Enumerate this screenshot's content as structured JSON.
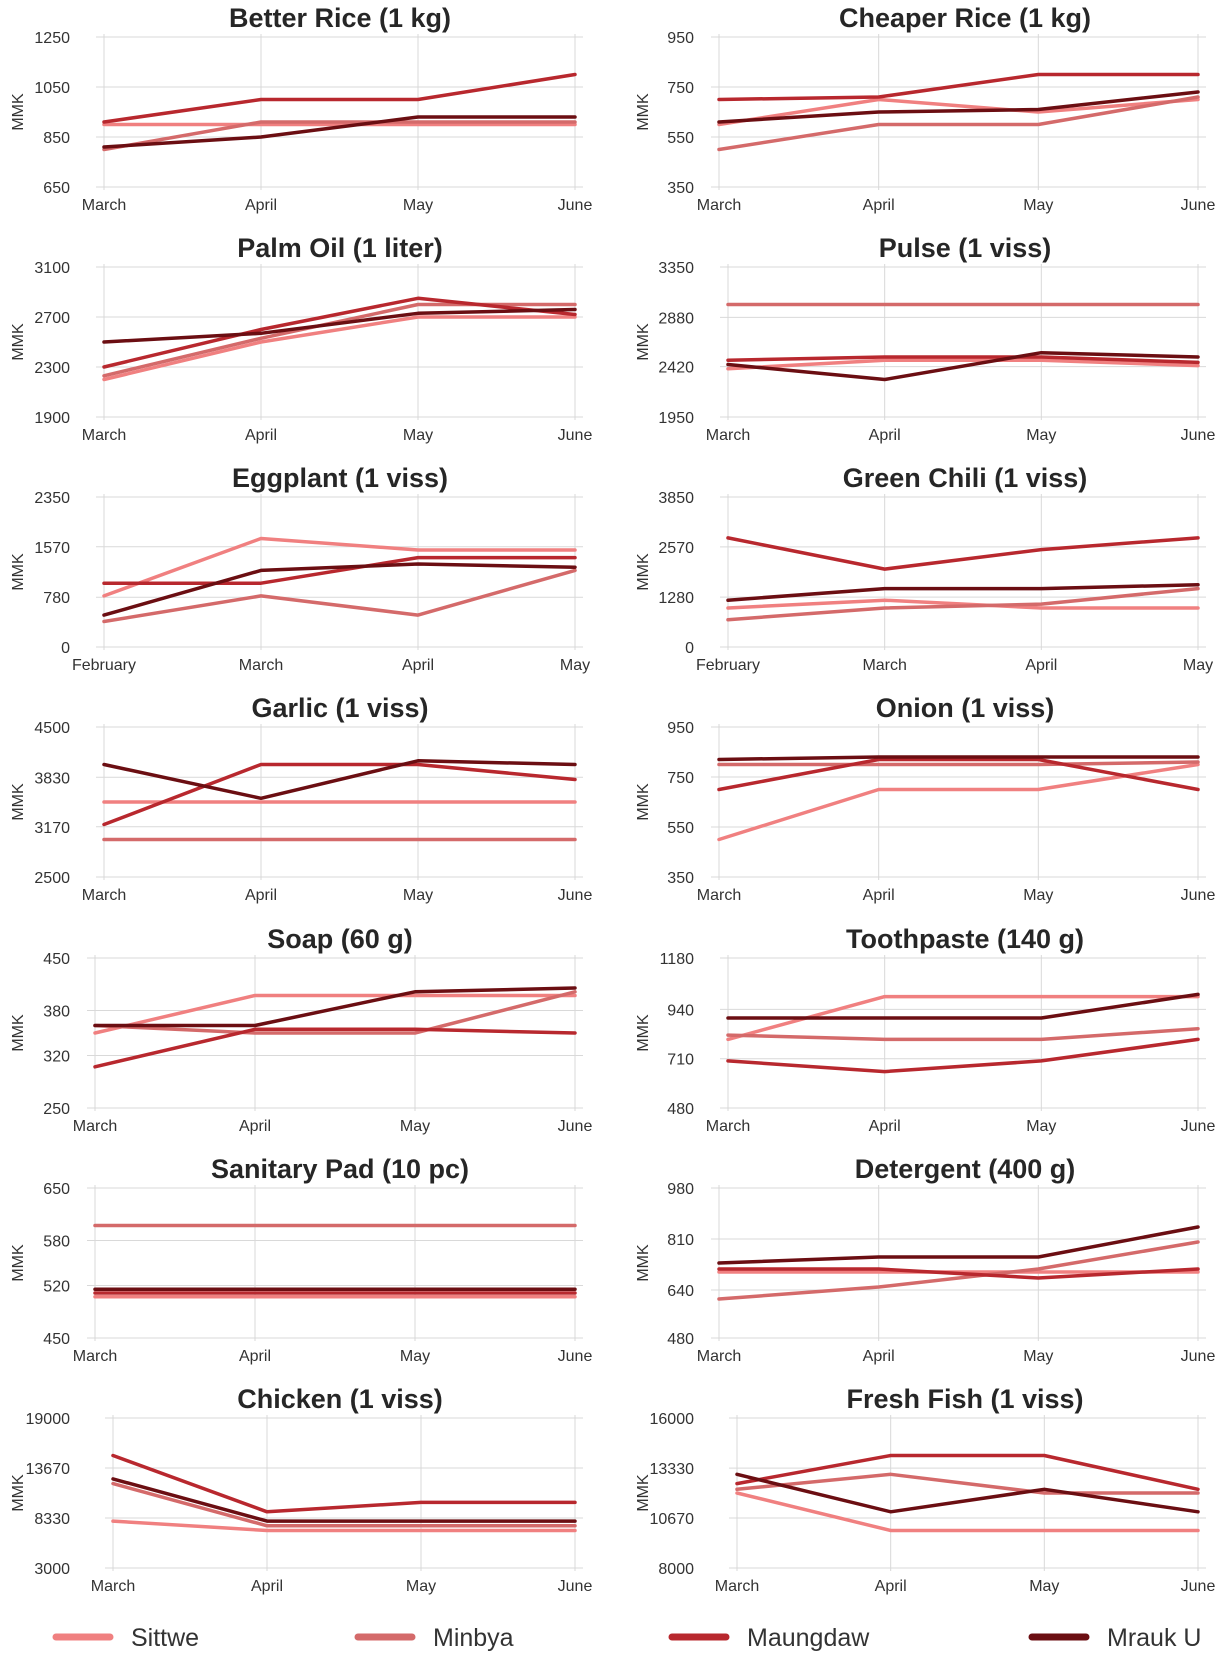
{
  "colors": {
    "Sittwe": "#f08080",
    "Minbya": "#d46a6a",
    "Maungdaw": "#b8282e",
    "Mrauk U": "#6b0e12"
  },
  "legend": [
    "Sittwe",
    "Minbya",
    "Maungdaw",
    "Mrauk U"
  ],
  "chart_data": [
    {
      "type": "line",
      "title": "Better Rice (1 kg)",
      "ylabel": "MMK",
      "categories": [
        "March",
        "April",
        "May",
        "June"
      ],
      "ylim": [
        650,
        1250
      ],
      "yticks": [
        650,
        850,
        1050,
        1250
      ],
      "series": [
        {
          "name": "Sittwe",
          "values": [
            900,
            900,
            900,
            900
          ]
        },
        {
          "name": "Minbya",
          "values": [
            800,
            910,
            910,
            910
          ]
        },
        {
          "name": "Maungdaw",
          "values": [
            910,
            1000,
            1000,
            1100
          ]
        },
        {
          "name": "Mrauk U",
          "values": [
            810,
            850,
            930,
            930
          ]
        }
      ]
    },
    {
      "type": "line",
      "title": "Cheaper Rice (1 kg)",
      "ylabel": "MMK",
      "categories": [
        "March",
        "April",
        "May",
        "June"
      ],
      "ylim": [
        350,
        950
      ],
      "yticks": [
        350,
        550,
        750,
        950
      ],
      "series": [
        {
          "name": "Sittwe",
          "values": [
            600,
            700,
            650,
            700
          ]
        },
        {
          "name": "Minbya",
          "values": [
            500,
            600,
            600,
            710
          ]
        },
        {
          "name": "Maungdaw",
          "values": [
            700,
            710,
            800,
            800
          ]
        },
        {
          "name": "Mrauk U",
          "values": [
            610,
            650,
            660,
            730
          ]
        }
      ]
    },
    {
      "type": "line",
      "title": "Palm Oil (1 liter)",
      "ylabel": "MMK",
      "categories": [
        "March",
        "April",
        "May",
        "June"
      ],
      "ylim": [
        1900,
        3100
      ],
      "yticks": [
        1900,
        2300,
        2700,
        3100
      ],
      "series": [
        {
          "name": "Sittwe",
          "values": [
            2200,
            2500,
            2700,
            2700
          ]
        },
        {
          "name": "Minbya",
          "values": [
            2230,
            2530,
            2800,
            2800
          ]
        },
        {
          "name": "Maungdaw",
          "values": [
            2300,
            2600,
            2850,
            2720
          ]
        },
        {
          "name": "Mrauk U",
          "values": [
            2500,
            2570,
            2730,
            2760
          ]
        }
      ]
    },
    {
      "type": "line",
      "title": "Pulse (1 viss)",
      "ylabel": "MMK",
      "categories": [
        "March",
        "April",
        "May",
        "June"
      ],
      "ylim": [
        1950,
        3350
      ],
      "yticks": [
        1950,
        2420,
        2880,
        3350
      ],
      "series": [
        {
          "name": "Sittwe",
          "values": [
            2400,
            2480,
            2480,
            2430
          ]
        },
        {
          "name": "Minbya",
          "values": [
            3000,
            3000,
            3000,
            3000
          ]
        },
        {
          "name": "Maungdaw",
          "values": [
            2480,
            2510,
            2510,
            2460
          ]
        },
        {
          "name": "Mrauk U",
          "values": [
            2440,
            2300,
            2550,
            2510
          ]
        }
      ]
    },
    {
      "type": "line",
      "title": "Eggplant (1 viss)",
      "ylabel": "MMK",
      "categories": [
        "February",
        "March",
        "April",
        "May"
      ],
      "ylim": [
        0,
        2350
      ],
      "yticks": [
        0,
        780,
        1570,
        2350
      ],
      "series": [
        {
          "name": "Sittwe",
          "values": [
            800,
            1700,
            1520,
            1520
          ]
        },
        {
          "name": "Minbya",
          "values": [
            400,
            800,
            500,
            1200
          ]
        },
        {
          "name": "Maungdaw",
          "values": [
            1000,
            1000,
            1400,
            1400
          ]
        },
        {
          "name": "Mrauk U",
          "values": [
            500,
            1200,
            1300,
            1250
          ]
        }
      ]
    },
    {
      "type": "line",
      "title": "Green Chili (1 viss)",
      "ylabel": "MMK",
      "categories": [
        "February",
        "March",
        "April",
        "May"
      ],
      "ylim": [
        0,
        3850
      ],
      "yticks": [
        0,
        1280,
        2570,
        3850
      ],
      "series": [
        {
          "name": "Sittwe",
          "values": [
            1000,
            1200,
            1000,
            1000
          ]
        },
        {
          "name": "Minbya",
          "values": [
            700,
            1000,
            1100,
            1500
          ]
        },
        {
          "name": "Maungdaw",
          "values": [
            2800,
            2000,
            2500,
            2800
          ]
        },
        {
          "name": "Mrauk U",
          "values": [
            1200,
            1500,
            1500,
            1600
          ]
        }
      ]
    },
    {
      "type": "line",
      "title": "Garlic (1 viss)",
      "ylabel": "MMK",
      "categories": [
        "March",
        "April",
        "May",
        "June"
      ],
      "ylim": [
        2500,
        4500
      ],
      "yticks": [
        2500,
        3170,
        3830,
        4500
      ],
      "series": [
        {
          "name": "Sittwe",
          "values": [
            3500,
            3500,
            3500,
            3500
          ]
        },
        {
          "name": "Minbya",
          "values": [
            3000,
            3000,
            3000,
            3000
          ]
        },
        {
          "name": "Maungdaw",
          "values": [
            3200,
            4000,
            4000,
            3800
          ]
        },
        {
          "name": "Mrauk U",
          "values": [
            4000,
            3550,
            4050,
            4000
          ]
        }
      ]
    },
    {
      "type": "line",
      "title": "Onion (1 viss)",
      "ylabel": "MMK",
      "categories": [
        "March",
        "April",
        "May",
        "June"
      ],
      "ylim": [
        350,
        950
      ],
      "yticks": [
        350,
        550,
        750,
        950
      ],
      "series": [
        {
          "name": "Sittwe",
          "values": [
            500,
            700,
            700,
            800
          ]
        },
        {
          "name": "Minbya",
          "values": [
            800,
            800,
            800,
            810
          ]
        },
        {
          "name": "Maungdaw",
          "values": [
            700,
            820,
            820,
            700
          ]
        },
        {
          "name": "Mrauk U",
          "values": [
            820,
            830,
            830,
            830
          ]
        }
      ]
    },
    {
      "type": "line",
      "title": "Soap (60 g)",
      "ylabel": "MMK",
      "categories": [
        "March",
        "April",
        "May",
        "June"
      ],
      "ylim": [
        250,
        450
      ],
      "yticks": [
        250,
        320,
        380,
        450
      ],
      "series": [
        {
          "name": "Sittwe",
          "values": [
            350,
            400,
            400,
            400
          ]
        },
        {
          "name": "Minbya",
          "values": [
            360,
            350,
            350,
            405
          ]
        },
        {
          "name": "Maungdaw",
          "values": [
            305,
            355,
            355,
            350
          ]
        },
        {
          "name": "Mrauk U",
          "values": [
            360,
            360,
            405,
            410
          ]
        }
      ]
    },
    {
      "type": "line",
      "title": "Toothpaste (140 g)",
      "ylabel": "MMK",
      "categories": [
        "March",
        "April",
        "May",
        "June"
      ],
      "ylim": [
        480,
        1180
      ],
      "yticks": [
        480,
        710,
        940,
        1180
      ],
      "series": [
        {
          "name": "Sittwe",
          "values": [
            800,
            1000,
            1000,
            1000
          ]
        },
        {
          "name": "Minbya",
          "values": [
            820,
            800,
            800,
            850
          ]
        },
        {
          "name": "Maungdaw",
          "values": [
            700,
            650,
            700,
            800
          ]
        },
        {
          "name": "Mrauk U",
          "values": [
            900,
            900,
            900,
            1010
          ]
        }
      ]
    },
    {
      "type": "line",
      "title": "Sanitary Pad (10 pc)",
      "ylabel": "MMK",
      "categories": [
        "March",
        "April",
        "May",
        "June"
      ],
      "ylim": [
        450,
        650
      ],
      "yticks": [
        450,
        520,
        580,
        650
      ],
      "series": [
        {
          "name": "Sittwe",
          "values": [
            505,
            505,
            505,
            505
          ]
        },
        {
          "name": "Minbya",
          "values": [
            600,
            600,
            600,
            600
          ]
        },
        {
          "name": "Maungdaw",
          "values": [
            510,
            510,
            510,
            510
          ]
        },
        {
          "name": "Mrauk U",
          "values": [
            515,
            515,
            515,
            515
          ]
        }
      ]
    },
    {
      "type": "line",
      "title": "Detergent (400 g)",
      "ylabel": "MMK",
      "categories": [
        "March",
        "April",
        "May",
        "June"
      ],
      "ylim": [
        480,
        980
      ],
      "yticks": [
        480,
        640,
        810,
        980
      ],
      "series": [
        {
          "name": "Sittwe",
          "values": [
            700,
            700,
            700,
            700
          ]
        },
        {
          "name": "Minbya",
          "values": [
            610,
            650,
            710,
            800
          ]
        },
        {
          "name": "Maungdaw",
          "values": [
            710,
            710,
            680,
            710
          ]
        },
        {
          "name": "Mrauk U",
          "values": [
            730,
            750,
            750,
            850
          ]
        }
      ]
    },
    {
      "type": "line",
      "title": "Chicken (1 viss)",
      "ylabel": "MMK",
      "categories": [
        "March",
        "April",
        "May",
        "June"
      ],
      "ylim": [
        3000,
        19000
      ],
      "yticks": [
        3000,
        8330,
        13670,
        19000
      ],
      "series": [
        {
          "name": "Sittwe",
          "values": [
            8000,
            7000,
            7000,
            7000
          ]
        },
        {
          "name": "Minbya",
          "values": [
            12000,
            7500,
            7500,
            7500
          ]
        },
        {
          "name": "Maungdaw",
          "values": [
            15000,
            9000,
            10000,
            10000
          ]
        },
        {
          "name": "Mrauk U",
          "values": [
            12500,
            8000,
            8000,
            8000
          ]
        }
      ]
    },
    {
      "type": "line",
      "title": "Fresh Fish (1 viss)",
      "ylabel": "MMK",
      "categories": [
        "March",
        "April",
        "May",
        "June"
      ],
      "ylim": [
        8000,
        16000
      ],
      "yticks": [
        8000,
        10670,
        13330,
        16000
      ],
      "series": [
        {
          "name": "Sittwe",
          "values": [
            12000,
            10000,
            10000,
            10000
          ]
        },
        {
          "name": "Minbya",
          "values": [
            12200,
            13000,
            12000,
            12000
          ]
        },
        {
          "name": "Maungdaw",
          "values": [
            12500,
            14000,
            14000,
            12200
          ]
        },
        {
          "name": "Mrauk U",
          "values": [
            13000,
            11000,
            12200,
            11000
          ]
        }
      ]
    }
  ]
}
